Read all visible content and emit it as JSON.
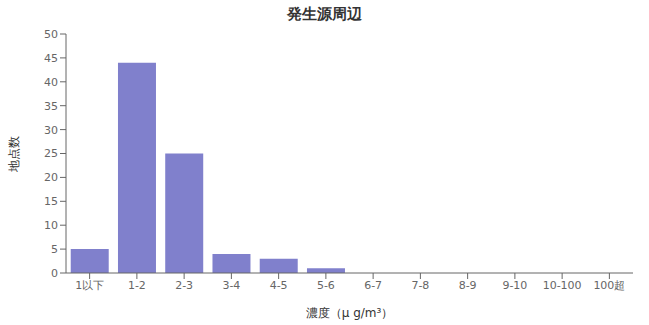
{
  "chart_data": {
    "type": "bar",
    "title": "発生源周辺",
    "categories": [
      "1以下",
      "1-2",
      "2-3",
      "3-4",
      "4-5",
      "5-6",
      "6-7",
      "7-8",
      "8-9",
      "9-10",
      "10-100",
      "100超"
    ],
    "values": [
      5,
      44,
      25,
      4,
      3,
      1,
      0,
      0,
      0,
      0,
      0,
      0
    ],
    "color": "#8080cc",
    "xlabel": "濃度（μ g/m³）",
    "ylabel": "地点数",
    "ylim": [
      0,
      50
    ],
    "yticks": [
      0,
      5,
      10,
      15,
      20,
      25,
      30,
      35,
      40,
      45,
      50
    ],
    "grid": false
  }
}
